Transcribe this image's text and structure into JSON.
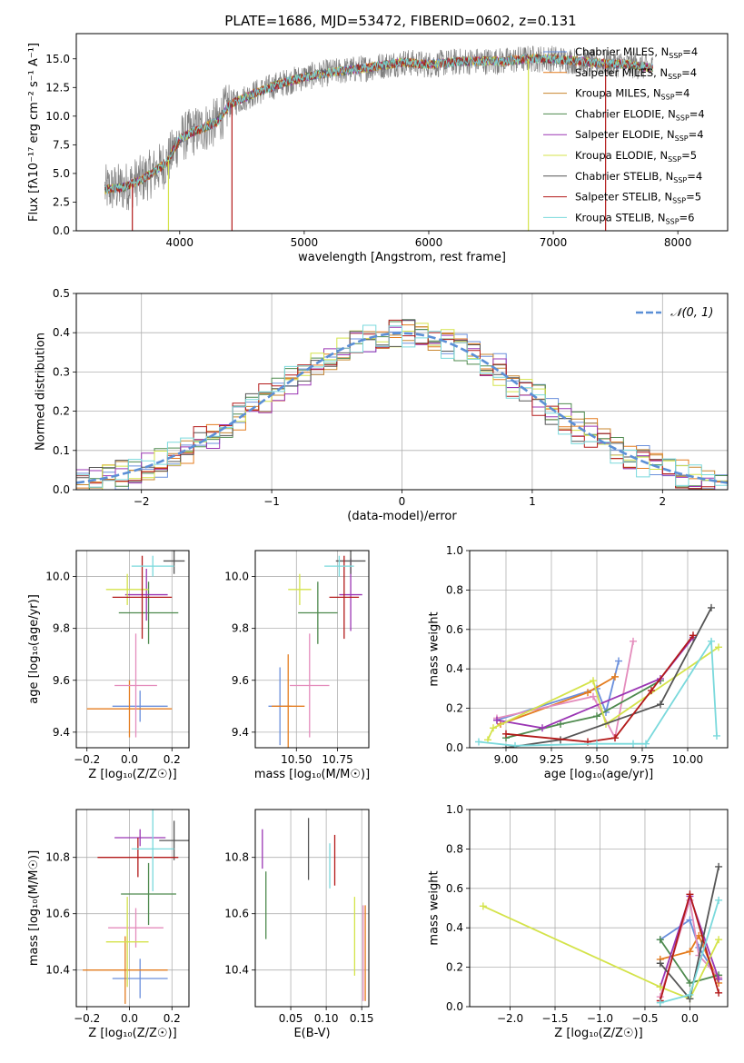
{
  "figure_title": "PLATE=1686, MJD=53472, FIBERID=0602, z=0.131",
  "models": [
    {
      "name": "Chabrier MILES",
      "nssp": "4",
      "color": "#6a8fdc"
    },
    {
      "name": "Salpeter MILES",
      "nssp": "4",
      "color": "#e47c1f"
    },
    {
      "name": "Kroupa MILES",
      "nssp": "4",
      "color": "#c8862e"
    },
    {
      "name": "Chabrier ELODIE",
      "nssp": "4",
      "color": "#4e8a4e"
    },
    {
      "name": "Salpeter ELODIE",
      "nssp": "4",
      "color": "#9b36b4"
    },
    {
      "name": "Kroupa ELODIE",
      "nssp": "5",
      "color": "#d4e34a"
    },
    {
      "name": "Chabrier STELIB",
      "nssp": "4",
      "color": "#555555"
    },
    {
      "name": "Salpeter STELIB",
      "nssp": "5",
      "color": "#b31a1a"
    },
    {
      "name": "Kroupa STELIB",
      "nssp": "6",
      "color": "#7ad9dc"
    }
  ],
  "chart_data": [
    {
      "id": "spectrum",
      "type": "line",
      "xlabel": "wavelength [Angstrom, rest frame]",
      "ylabel": "Flux [fλ10⁻¹⁷ erg cm⁻² s⁻¹ A⁻¹]",
      "xlim": [
        3170,
        8400
      ],
      "ylim": [
        0,
        17.2
      ],
      "xticks": [
        4000,
        5000,
        6000,
        7000,
        8000
      ],
      "yticks": [
        0.0,
        2.5,
        5.0,
        7.5,
        10.0,
        12.5,
        15.0
      ],
      "ytick_labels": [
        "0.0",
        "2.5",
        "5.0",
        "7.5",
        "10.0",
        "12.5",
        "15.0"
      ],
      "continuum_x": [
        3400,
        3550,
        3700,
        3800,
        3900,
        4000,
        4100,
        4200,
        4300,
        4400,
        4600,
        4800,
        5000,
        5200,
        5500,
        5800,
        6000,
        6300,
        6600,
        6800,
        7000,
        7200,
        7400,
        7600,
        7800
      ],
      "continuum_y": [
        3.6,
        3.8,
        4.5,
        5.2,
        6.0,
        8.0,
        8.6,
        9.0,
        9.5,
        11.0,
        12.0,
        12.8,
        13.4,
        13.8,
        14.2,
        14.7,
        14.5,
        14.8,
        14.8,
        15.0,
        15.0,
        14.8,
        14.6,
        14.5,
        14.2
      ],
      "legend": "upper right"
    },
    {
      "id": "residuals",
      "type": "line",
      "xlabel": "(data-model)/error",
      "ylabel": "Normed distribution",
      "xlim": [
        -2.5,
        2.5
      ],
      "ylim": [
        0,
        0.5
      ],
      "xticks": [
        -2,
        -1,
        0,
        1,
        2
      ],
      "xtick_labels": [
        "−2",
        "−1",
        "0",
        "1",
        "2"
      ],
      "yticks": [
        0.0,
        0.1,
        0.2,
        0.3,
        0.4,
        0.5
      ],
      "ytick_labels": [
        "0.0",
        "0.1",
        "0.2",
        "0.3",
        "0.4",
        "0.5"
      ],
      "gaussian_label": "𝒩(0, 1)",
      "grid": true,
      "legend": "upper right"
    },
    {
      "id": "age_vs_Z",
      "type": "scatter",
      "xlabel": "Z [log₁₀(Z/Z☉)]",
      "ylabel": "age  [log₁₀(age/yr)]",
      "xlim": [
        -0.25,
        0.28
      ],
      "ylim": [
        9.34,
        10.1
      ],
      "xticks": [
        -0.2,
        0.0,
        0.2
      ],
      "xtick_labels": [
        "−0.2",
        "0.0",
        "0.2"
      ],
      "yticks": [
        9.4,
        9.6,
        9.8,
        10.0
      ],
      "ytick_labels": [
        "9.4",
        "9.6",
        "9.8",
        "10.0"
      ],
      "grid": true,
      "points": [
        {
          "x": 0.05,
          "y": 9.5,
          "xerr": 0.13,
          "yerr": 0.06,
          "color": "#6a8fdc"
        },
        {
          "x": 0.0,
          "y": 9.49,
          "xerr": 0.2,
          "yerr": 0.11,
          "color": "#e47c1f"
        },
        {
          "x": 0.03,
          "y": 9.58,
          "xerr": 0.1,
          "yerr": 0.2,
          "color": "#e48cbc"
        },
        {
          "x": 0.09,
          "y": 9.86,
          "xerr": 0.14,
          "yerr": 0.12,
          "color": "#4e8a4e"
        },
        {
          "x": 0.08,
          "y": 9.93,
          "xerr": 0.1,
          "yerr": 0.1,
          "color": "#9b36b4"
        },
        {
          "x": -0.01,
          "y": 9.95,
          "xerr": 0.1,
          "yerr": 0.06,
          "color": "#d4e34a"
        },
        {
          "x": 0.21,
          "y": 10.06,
          "xerr": 0.05,
          "yerr": 0.05,
          "color": "#555555"
        },
        {
          "x": 0.06,
          "y": 9.92,
          "xerr": 0.14,
          "yerr": 0.16,
          "color": "#b31a1a"
        },
        {
          "x": 0.11,
          "y": 10.04,
          "xerr": 0.1,
          "yerr": 0.04,
          "color": "#7ad9dc"
        }
      ]
    },
    {
      "id": "age_vs_mass",
      "type": "scatter",
      "xlabel": "mass [log₁₀(M/M☉)]",
      "ylabel": "",
      "xlim": [
        10.25,
        10.94
      ],
      "ylim": [
        9.34,
        10.1
      ],
      "xticks": [
        10.5,
        10.75
      ],
      "xtick_labels": [
        "10.50",
        "10.75"
      ],
      "yticks": [
        9.4,
        9.6,
        9.8,
        10.0
      ],
      "ytick_labels": [
        "9.4",
        "9.6",
        "9.8",
        "10.0"
      ],
      "grid": true,
      "points": [
        {
          "x": 10.4,
          "y": 9.5,
          "xerr": 0.07,
          "yerr": 0.15,
          "color": "#6a8fdc"
        },
        {
          "x": 10.45,
          "y": 9.5,
          "xerr": 0.1,
          "yerr": 0.2,
          "color": "#e47c1f"
        },
        {
          "x": 10.58,
          "y": 9.58,
          "xerr": 0.12,
          "yerr": 0.2,
          "color": "#e48cbc"
        },
        {
          "x": 10.63,
          "y": 9.86,
          "xerr": 0.12,
          "yerr": 0.12,
          "color": "#4e8a4e"
        },
        {
          "x": 10.83,
          "y": 9.93,
          "xerr": 0.07,
          "yerr": 0.14,
          "color": "#9b36b4"
        },
        {
          "x": 10.52,
          "y": 9.95,
          "xerr": 0.07,
          "yerr": 0.06,
          "color": "#d4e34a"
        },
        {
          "x": 10.83,
          "y": 10.06,
          "xerr": 0.09,
          "yerr": 0.05,
          "color": "#555555"
        },
        {
          "x": 10.79,
          "y": 9.92,
          "xerr": 0.09,
          "yerr": 0.16,
          "color": "#b31a1a"
        },
        {
          "x": 10.76,
          "y": 10.04,
          "xerr": 0.09,
          "yerr": 0.04,
          "color": "#7ad9dc"
        }
      ]
    },
    {
      "id": "weight_vs_age",
      "type": "line",
      "xlabel": "age  [log₁₀(age/yr)]",
      "ylabel": "mass weight",
      "xlim": [
        8.8,
        10.22
      ],
      "ylim": [
        0,
        1.0
      ],
      "xticks": [
        9.0,
        9.25,
        9.5,
        9.75,
        10.0
      ],
      "xtick_labels": [
        "9.00",
        "9.25",
        "9.50",
        "9.75",
        "10.00"
      ],
      "yticks": [
        0.0,
        0.2,
        0.4,
        0.6,
        0.8,
        1.0
      ],
      "ytick_labels": [
        "0.0",
        "0.2",
        "0.4",
        "0.6",
        "0.8",
        "1.0"
      ],
      "grid": true,
      "series": [
        {
          "color": "#6a8fdc",
          "x": [
            8.95,
            9.5,
            9.55,
            9.62
          ],
          "y": [
            0.14,
            0.3,
            0.18,
            0.44
          ]
        },
        {
          "color": "#e47c1f",
          "x": [
            8.97,
            9.45,
            9.6
          ],
          "y": [
            0.12,
            0.28,
            0.36
          ]
        },
        {
          "color": "#e48cbc",
          "x": [
            8.95,
            9.48,
            9.6,
            9.7
          ],
          "y": [
            0.15,
            0.26,
            0.05,
            0.54
          ]
        },
        {
          "color": "#4e8a4e",
          "x": [
            9.0,
            9.3,
            9.5,
            9.85
          ],
          "y": [
            0.05,
            0.12,
            0.16,
            0.34
          ]
        },
        {
          "color": "#9b36b4",
          "x": [
            8.95,
            9.2,
            9.85,
            10.03
          ],
          "y": [
            0.14,
            0.1,
            0.35,
            0.56
          ]
        },
        {
          "color": "#d4e34a",
          "x": [
            8.9,
            8.93,
            9.48,
            9.55,
            10.17
          ],
          "y": [
            0.04,
            0.1,
            0.34,
            0.12,
            0.51
          ]
        },
        {
          "color": "#555555",
          "x": [
            9.0,
            9.3,
            9.85,
            10.13
          ],
          "y": [
            0.0,
            0.04,
            0.22,
            0.71
          ]
        },
        {
          "color": "#b31a1a",
          "x": [
            9.0,
            9.45,
            9.6,
            9.8,
            10.03
          ],
          "y": [
            0.07,
            0.03,
            0.05,
            0.29,
            0.57
          ]
        },
        {
          "color": "#7ad9dc",
          "x": [
            8.85,
            9.05,
            9.5,
            9.7,
            9.77,
            10.13,
            10.16
          ],
          "y": [
            0.03,
            0.01,
            0.02,
            0.02,
            0.02,
            0.54,
            0.06
          ]
        }
      ]
    },
    {
      "id": "mass_vs_Z",
      "type": "scatter",
      "xlabel": "Z [log₁₀(Z/Z☉)]",
      "ylabel": "mass [log₁₀(M/M☉)]",
      "xlim": [
        -0.25,
        0.28
      ],
      "ylim": [
        10.27,
        10.97
      ],
      "xticks": [
        -0.2,
        0.0,
        0.2
      ],
      "xtick_labels": [
        "−0.2",
        "0.0",
        "0.2"
      ],
      "yticks": [
        10.4,
        10.6,
        10.8
      ],
      "ytick_labels": [
        "10.4",
        "10.6",
        "10.8"
      ],
      "grid": true,
      "points": [
        {
          "x": 0.05,
          "y": 10.37,
          "xerr": 0.13,
          "yerr": 0.07,
          "color": "#6a8fdc"
        },
        {
          "x": -0.02,
          "y": 10.4,
          "xerr": 0.2,
          "yerr": 0.12,
          "color": "#e47c1f"
        },
        {
          "x": 0.03,
          "y": 10.55,
          "xerr": 0.13,
          "yerr": 0.07,
          "color": "#e48cbc"
        },
        {
          "x": 0.09,
          "y": 10.67,
          "xerr": 0.13,
          "yerr": 0.11,
          "color": "#4e8a4e"
        },
        {
          "x": 0.05,
          "y": 10.87,
          "xerr": 0.12,
          "yerr": 0.03,
          "color": "#9b36b4"
        },
        {
          "x": -0.01,
          "y": 10.5,
          "xerr": 0.1,
          "yerr": 0.16,
          "color": "#d4e34a"
        },
        {
          "x": 0.21,
          "y": 10.86,
          "xerr": 0.07,
          "yerr": 0.07,
          "color": "#555555"
        },
        {
          "x": 0.04,
          "y": 10.8,
          "xerr": 0.19,
          "yerr": 0.07,
          "color": "#b31a1a"
        },
        {
          "x": 0.11,
          "y": 10.83,
          "xerr": 0.1,
          "yerr": 0.15,
          "color": "#7ad9dc"
        }
      ]
    },
    {
      "id": "mass_vs_ebv",
      "type": "scatter",
      "xlabel": "E(B-V)",
      "ylabel": "",
      "xlim": [
        0.0,
        0.16
      ],
      "ylim": [
        10.27,
        10.97
      ],
      "xticks": [
        0.05,
        0.1,
        0.15
      ],
      "xtick_labels": [
        "0.05",
        "0.10",
        "0.15"
      ],
      "yticks": [
        10.4,
        10.6,
        10.8
      ],
      "ytick_labels": [
        "10.4",
        "10.6",
        "10.8"
      ],
      "grid": true,
      "points": [
        {
          "x": 0.01,
          "y": 10.83,
          "xerr": 0,
          "yerr": 0.07,
          "color": "#9b36b4"
        },
        {
          "x": 0.015,
          "y": 10.63,
          "xerr": 0,
          "yerr": 0.12,
          "color": "#4e8a4e"
        },
        {
          "x": 0.075,
          "y": 10.83,
          "xerr": 0,
          "yerr": 0.11,
          "color": "#555555"
        },
        {
          "x": 0.105,
          "y": 10.77,
          "xerr": 0,
          "yerr": 0.08,
          "color": "#7ad9dc"
        },
        {
          "x": 0.112,
          "y": 10.79,
          "xerr": 0,
          "yerr": 0.09,
          "color": "#b31a1a"
        },
        {
          "x": 0.14,
          "y": 10.52,
          "xerr": 0,
          "yerr": 0.14,
          "color": "#d4e34a"
        },
        {
          "x": 0.152,
          "y": 10.46,
          "xerr": 0,
          "yerr": 0.17,
          "color": "#e48cbc"
        },
        {
          "x": 0.155,
          "y": 10.46,
          "xerr": 0,
          "yerr": 0.17,
          "color": "#e47c1f"
        }
      ]
    },
    {
      "id": "weight_vs_Z",
      "type": "line",
      "xlabel": "Z [log₁₀(Z/Z☉)]",
      "ylabel": "mass weight",
      "xlim": [
        -2.45,
        0.42
      ],
      "ylim": [
        0,
        1.0
      ],
      "xticks": [
        -2.0,
        -1.5,
        -1.0,
        -0.5,
        0.0
      ],
      "xtick_labels": [
        "−2.0",
        "−1.5",
        "−1.0",
        "−0.5",
        "0.0"
      ],
      "yticks": [
        0.0,
        0.2,
        0.4,
        0.6,
        0.8,
        1.0
      ],
      "ytick_labels": [
        "0.0",
        "0.2",
        "0.4",
        "0.6",
        "0.8",
        "1.0"
      ],
      "grid": true,
      "series": [
        {
          "color": "#6a8fdc",
          "x": [
            -0.33,
            0.0,
            0.1,
            0.32
          ],
          "y": [
            0.34,
            0.44,
            0.3,
            0.14
          ]
        },
        {
          "color": "#e47c1f",
          "x": [
            -0.33,
            0.0,
            0.1,
            0.32
          ],
          "y": [
            0.24,
            0.28,
            0.36,
            0.12
          ]
        },
        {
          "color": "#e48cbc",
          "x": [
            -0.33,
            0.0,
            0.1,
            0.32
          ],
          "y": [
            0.05,
            0.54,
            0.26,
            0.15
          ]
        },
        {
          "color": "#4e8a4e",
          "x": [
            -0.33,
            0.0,
            0.32
          ],
          "y": [
            0.34,
            0.12,
            0.16
          ]
        },
        {
          "color": "#9b36b4",
          "x": [
            -0.33,
            0.0,
            0.32
          ],
          "y": [
            0.1,
            0.56,
            0.14
          ]
        },
        {
          "color": "#d4e34a",
          "x": [
            -2.3,
            -0.33,
            0.0,
            0.32
          ],
          "y": [
            0.51,
            0.1,
            0.04,
            0.34
          ]
        },
        {
          "color": "#555555",
          "x": [
            -0.33,
            0.0,
            0.32
          ],
          "y": [
            0.22,
            0.04,
            0.71
          ]
        },
        {
          "color": "#b31a1a",
          "x": [
            -0.33,
            0.0,
            0.32
          ],
          "y": [
            0.03,
            0.57,
            0.07
          ]
        },
        {
          "color": "#7ad9dc",
          "x": [
            -0.33,
            0.0,
            0.32
          ],
          "y": [
            0.02,
            0.06,
            0.54
          ]
        }
      ]
    }
  ]
}
